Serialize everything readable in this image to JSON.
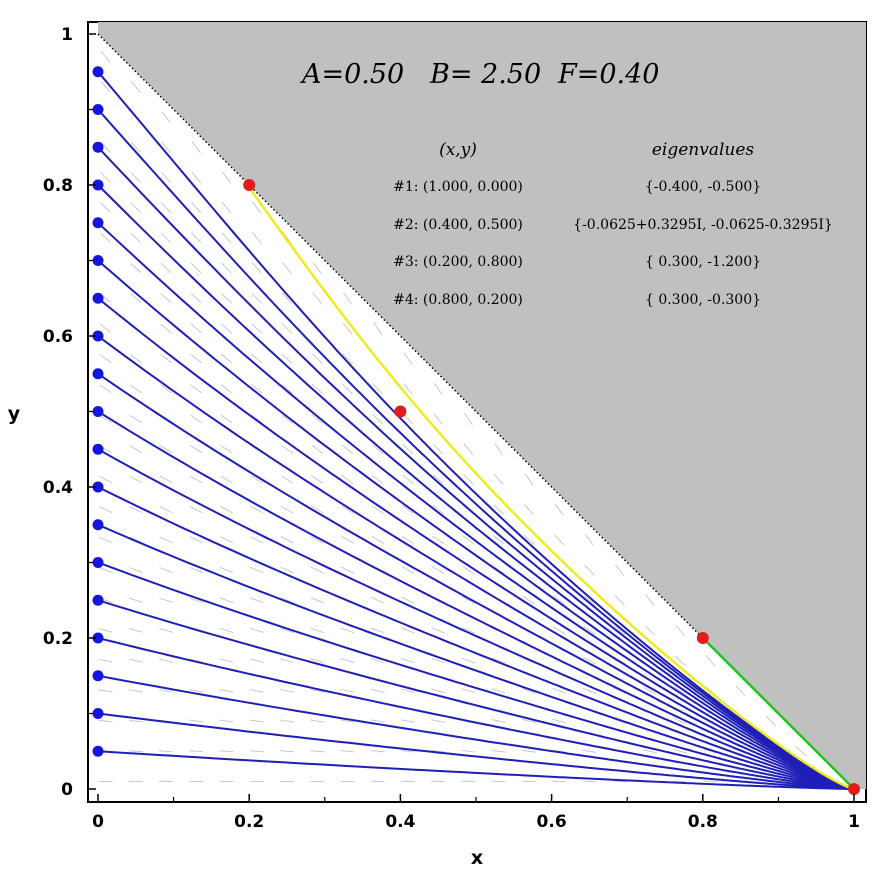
{
  "chart_data": {
    "type": "line",
    "title": "",
    "xlabel": "x",
    "ylabel": "y",
    "xlim": [
      0,
      1
    ],
    "ylim": [
      0,
      1
    ],
    "x_ticks": [
      "0",
      "0.2",
      "0.4",
      "0.6",
      "0.8",
      "1"
    ],
    "y_ticks": [
      "0",
      "0.2",
      "0.4",
      "0.6",
      "0.8",
      "1"
    ],
    "grid": false,
    "parameters": {
      "A": "A=0.50",
      "B": "B= 2.50",
      "F": "F=0.40"
    },
    "fixed_points_table": {
      "header_xy": "(x,y)",
      "header_eig": "eigenvalues",
      "rows": [
        {
          "xy": "#1: (1.000, 0.000)",
          "eig": "{-0.400, -0.500}"
        },
        {
          "xy": "#2: (0.400, 0.500)",
          "eig": "{-0.0625+0.3295I, -0.0625-0.3295I}"
        },
        {
          "xy": "#3: (0.200, 0.800)",
          "eig": "{ 0.300, -1.200}"
        },
        {
          "xy": "#4: (0.800, 0.200)",
          "eig": "{ 0.300, -0.300}"
        }
      ]
    },
    "fixed_points": [
      {
        "x": 1.0,
        "y": 0.0
      },
      {
        "x": 0.4,
        "y": 0.5
      },
      {
        "x": 0.2,
        "y": 0.8
      },
      {
        "x": 0.8,
        "y": 0.2
      }
    ],
    "trajectory_start_y": [
      0.05,
      0.1,
      0.15,
      0.2,
      0.25,
      0.3,
      0.35,
      0.4,
      0.45,
      0.5,
      0.55,
      0.6,
      0.65,
      0.7,
      0.75,
      0.8,
      0.85,
      0.9,
      0.95
    ],
    "forbidden_region": "x + y > 1",
    "colors": {
      "trajectory": "#1f1fb8",
      "start_dot": "#1515e0",
      "fixed_point": "#e21b1b",
      "manifold_unstable_3": "#f2ea18",
      "manifold_4": "#18c818",
      "forbidden_fill": "#c0c0c0",
      "direction_field": "#c8c8c8"
    }
  }
}
